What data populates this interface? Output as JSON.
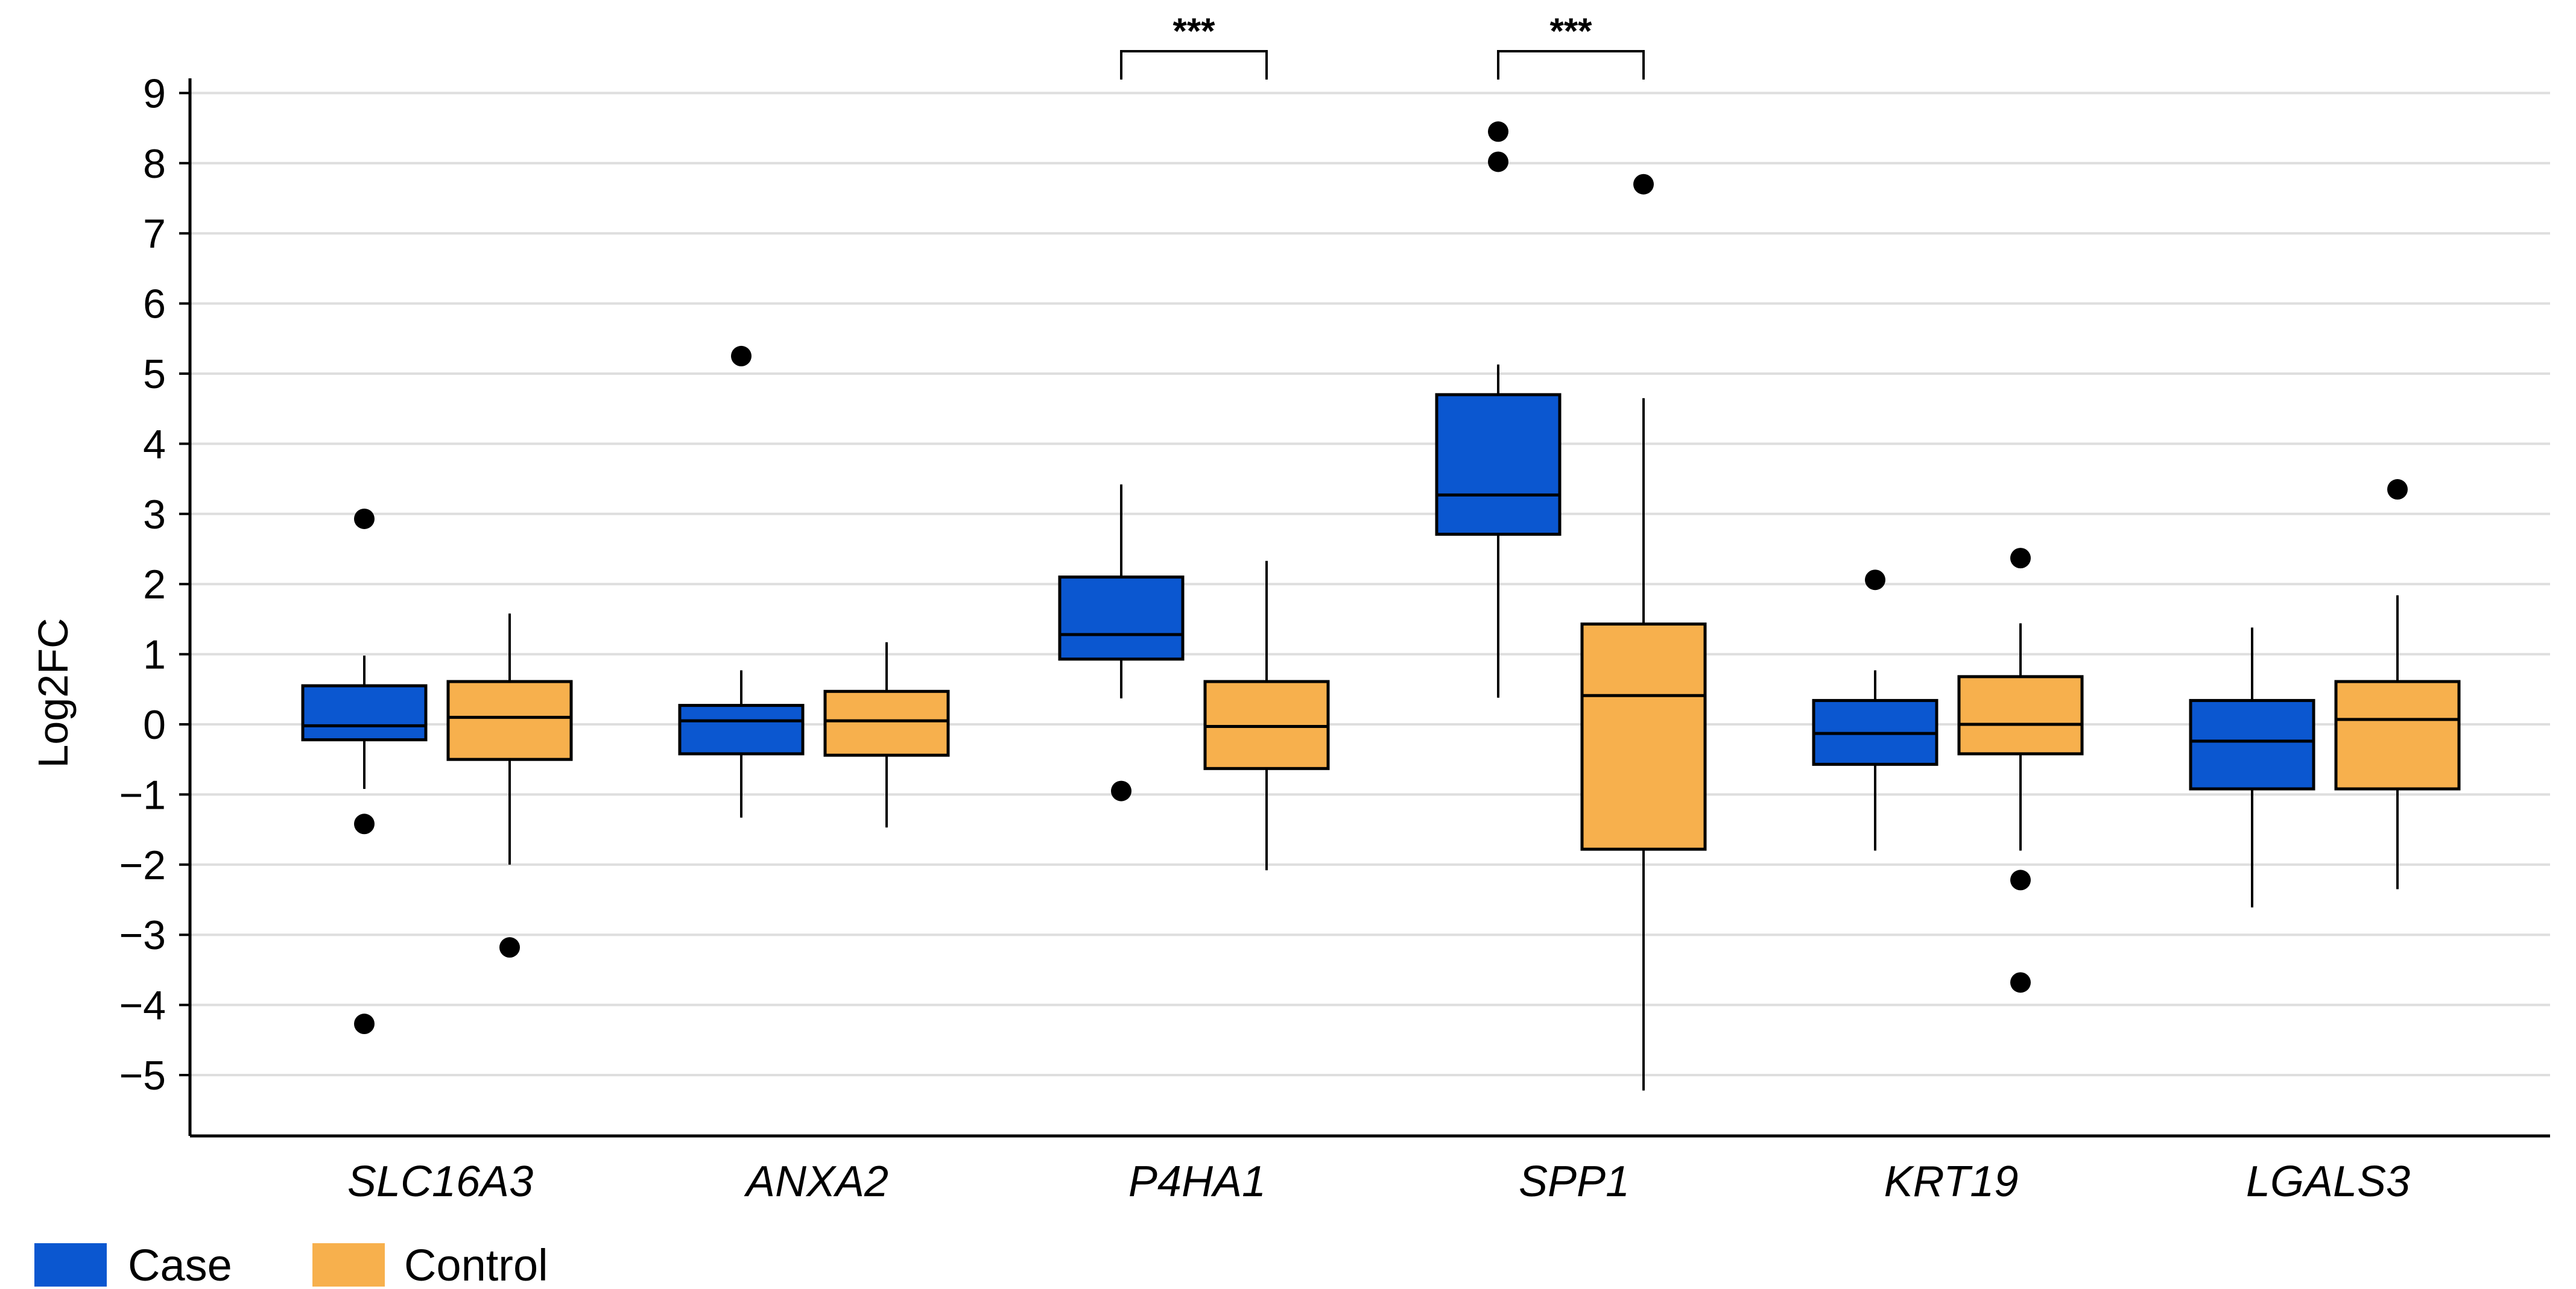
{
  "chart_data": {
    "type": "boxplot",
    "title": "",
    "xlabel": "",
    "ylabel": "Log2FC",
    "ylim": [
      -6.0,
      9.25
    ],
    "yticks": [
      9,
      8,
      7,
      6,
      5,
      4,
      3,
      2,
      1,
      0,
      -1,
      -2,
      -3,
      -4,
      -5
    ],
    "ytick_labels": [
      "9",
      "8",
      "7",
      "6",
      "5",
      "4",
      "3",
      "2",
      "1",
      "0",
      "−1",
      "−2",
      "−3",
      "−4",
      "−5"
    ],
    "grid": "horizontal",
    "categories": [
      "SLC16A3",
      "ANXA2",
      "P4HA1",
      "SPP1",
      "KRT19",
      "LGALS3"
    ],
    "series": [
      {
        "name": "Case",
        "color": "#0b57d0",
        "boxes": [
          {
            "whisker_low": -0.92,
            "q1": -0.22,
            "median": -0.02,
            "q3": 0.55,
            "whisker_high": 0.98,
            "outliers": [
              2.93,
              -1.42,
              -4.27
            ]
          },
          {
            "whisker_low": -1.33,
            "q1": -0.42,
            "median": 0.05,
            "q3": 0.27,
            "whisker_high": 0.77,
            "outliers": [
              5.25
            ]
          },
          {
            "whisker_low": 0.37,
            "q1": 0.93,
            "median": 1.28,
            "q3": 2.1,
            "whisker_high": 3.42,
            "outliers": [
              -0.95
            ]
          },
          {
            "whisker_low": 0.38,
            "q1": 2.71,
            "median": 3.27,
            "q3": 4.7,
            "whisker_high": 5.13,
            "outliers": [
              8.45,
              8.02
            ]
          },
          {
            "whisker_low": -1.8,
            "q1": -0.57,
            "median": -0.13,
            "q3": 0.34,
            "whisker_high": 0.77,
            "outliers": [
              2.06
            ]
          },
          {
            "whisker_low": -2.61,
            "q1": -0.92,
            "median": -0.24,
            "q3": 0.34,
            "whisker_high": 1.38,
            "outliers": []
          }
        ]
      },
      {
        "name": "Control",
        "color": "#f7b04d",
        "boxes": [
          {
            "whisker_low": -2.0,
            "q1": -0.5,
            "median": 0.1,
            "q3": 0.61,
            "whisker_high": 1.58,
            "outliers": [
              -3.18
            ]
          },
          {
            "whisker_low": -1.47,
            "q1": -0.44,
            "median": 0.05,
            "q3": 0.47,
            "whisker_high": 1.17,
            "outliers": []
          },
          {
            "whisker_low": -2.08,
            "q1": -0.63,
            "median": -0.03,
            "q3": 0.61,
            "whisker_high": 2.33,
            "outliers": []
          },
          {
            "whisker_low": -5.22,
            "q1": -1.78,
            "median": 0.41,
            "q3": 1.43,
            "whisker_high": 4.65,
            "outliers": [
              7.7
            ]
          },
          {
            "whisker_low": -1.8,
            "q1": -0.42,
            "median": 0.0,
            "q3": 0.68,
            "whisker_high": 1.44,
            "outliers": [
              2.37,
              -2.22,
              -3.68
            ]
          },
          {
            "whisker_low": -2.35,
            "q1": -0.92,
            "median": 0.07,
            "q3": 0.61,
            "whisker_high": 1.84,
            "outliers": [
              3.35
            ]
          }
        ]
      }
    ],
    "significance": [
      {
        "category": "P4HA1",
        "label": "***"
      },
      {
        "category": "SPP1",
        "label": "***"
      }
    ],
    "legend": {
      "position": "bottom-left",
      "entries": [
        {
          "label": "Case",
          "color": "#0b57d0"
        },
        {
          "label": "Control",
          "color": "#f7b04d"
        }
      ]
    }
  }
}
